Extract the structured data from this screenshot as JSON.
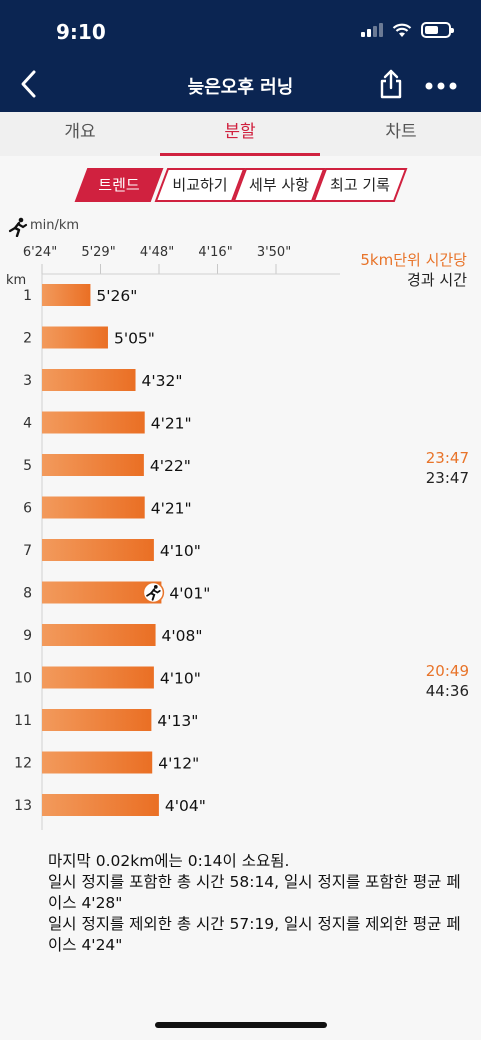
{
  "status": {
    "time": "9:10"
  },
  "nav": {
    "title": "늦은오후 러닝"
  },
  "tabs": [
    {
      "label": "개요"
    },
    {
      "label": "분할"
    },
    {
      "label": "차트"
    }
  ],
  "segments": [
    {
      "label": "트렌드"
    },
    {
      "label": "비교하기"
    },
    {
      "label": "세부 사항"
    },
    {
      "label": "최고 기록"
    }
  ],
  "chart_data": {
    "type": "bar",
    "orientation": "horizontal",
    "unit_label": "min/km",
    "y_axis_label": "km",
    "x_ticks": [
      "6'24\"",
      "5'29\"",
      "4'48\"",
      "4'16\"",
      "3'50\""
    ],
    "categories": [
      "1",
      "2",
      "3",
      "4",
      "5",
      "6",
      "7",
      "8",
      "9",
      "10",
      "11",
      "12",
      "13"
    ],
    "values": [
      326,
      305,
      272,
      261,
      262,
      261,
      250,
      241,
      248,
      250,
      253,
      252,
      244
    ],
    "labels": [
      "5'26\"",
      "5'05\"",
      "4'32\"",
      "4'21\"",
      "4'22\"",
      "4'21\"",
      "4'10\"",
      "4'01\"",
      "4'08\"",
      "4'10\"",
      "4'13\"",
      "4'12\"",
      "4'04\""
    ],
    "best_index": 7,
    "bar_color": "#ec7a2e",
    "side_title": {
      "line1": "5km단위 시간당",
      "line2": "경과 시간"
    },
    "side_values": [
      {
        "km": "5",
        "split": "23:47",
        "elapsed": "23:47"
      },
      {
        "km": "10",
        "split": "20:49",
        "elapsed": "44:36"
      }
    ]
  },
  "footer": {
    "line1": "마지막 0.02km에는 0:14이 소요됨.",
    "line2": "일시 정지를 포함한 총 시간 58:14, 일시 정지를 포함한 평균 페이스 4'28\"",
    "line3": "일시 정지를 제외한 총 시간 57:19, 일시 정지를 제외한 평균 페이스 4'24\""
  },
  "colors": {
    "header": "#0b2552",
    "accent": "#d0213f",
    "orange": "#e8742a"
  }
}
